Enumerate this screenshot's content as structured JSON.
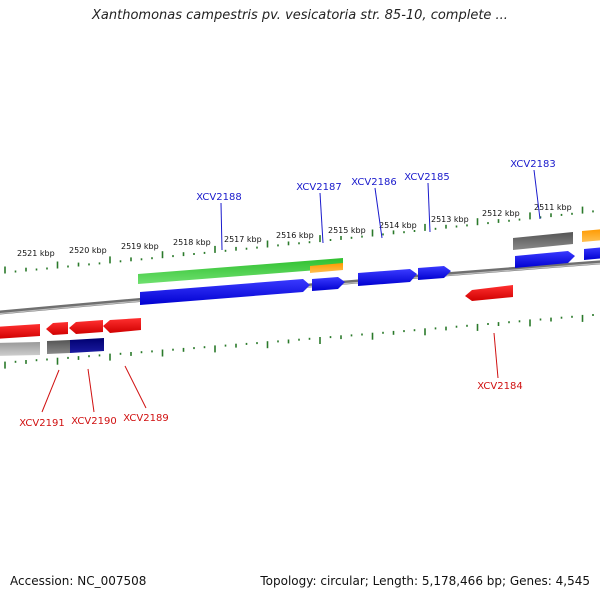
{
  "title": "Xanthomonas campestris pv. vesicatoria str. 85-10, complete ...",
  "footer": {
    "accession": "Accession: NC_007508",
    "topology": "Topology: circular; Length: 5,178,466 bp; Genes: 4,545"
  },
  "colors": {
    "top_label": "#1a1acc",
    "bottom_label": "#d01010",
    "tick": "#2a7a2a",
    "backbone": "#888888"
  },
  "kbp_labels": [
    "2521 kbp",
    "2520 kbp",
    "2519 kbp",
    "2518 kbp",
    "2517 kbp",
    "2516 kbp",
    "2515 kbp",
    "2514 kbp",
    "2513 kbp",
    "2512 kbp",
    "2511 kbp"
  ],
  "gene_labels_top": [
    "XCV2188",
    "XCV2187",
    "XCV2186",
    "XCV2185",
    "XCV2183"
  ],
  "gene_labels_bottom": [
    "XCV2191",
    "XCV2190",
    "XCV2189",
    "XCV2184"
  ]
}
